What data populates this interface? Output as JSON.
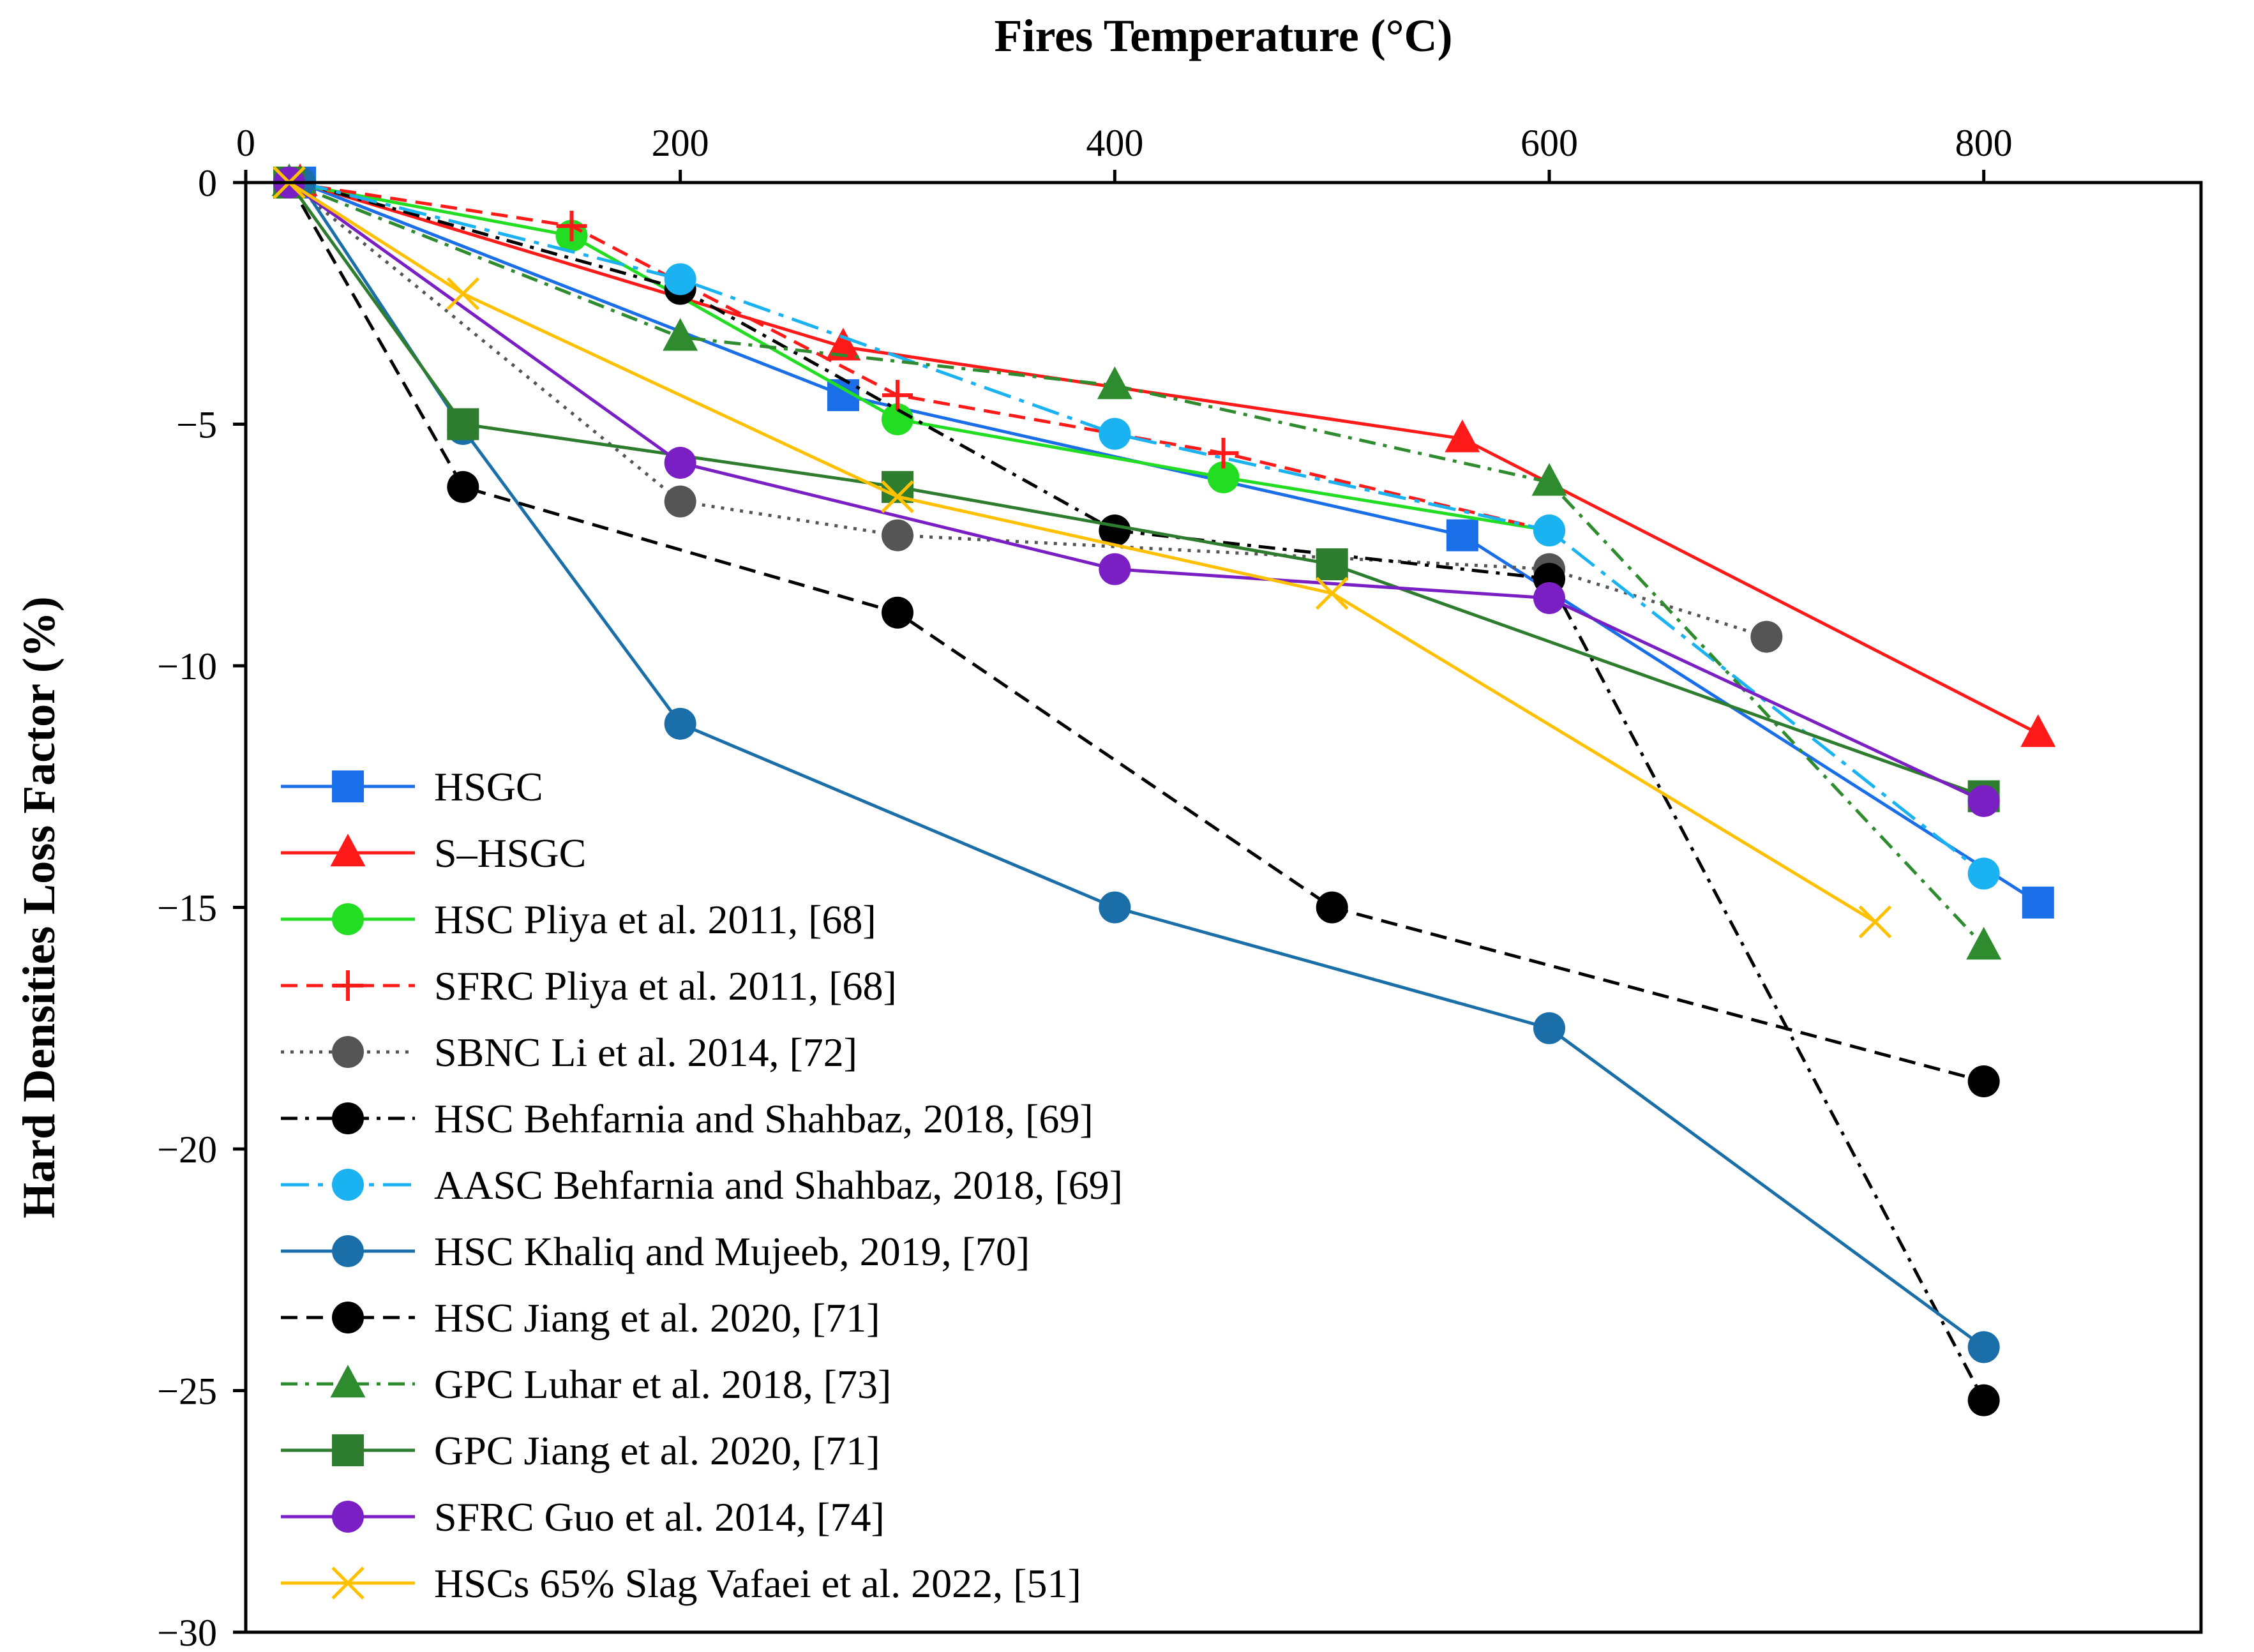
{
  "chart_data": {
    "type": "line",
    "title": "",
    "xlabel": "Fires Temperature (°C)",
    "ylabel": "Hard Densities Loss Factor (%)",
    "xlim": [
      0,
      900
    ],
    "ylim": [
      -30,
      0
    ],
    "x_ticks": [
      0,
      200,
      400,
      600,
      800
    ],
    "x_tick_labels": [
      "0",
      "200",
      "400",
      "600",
      "800"
    ],
    "y_ticks": [
      0,
      -5,
      -10,
      -15,
      -20,
      -25,
      -30
    ],
    "y_tick_labels": [
      "0",
      "−5",
      "−10",
      "−15",
      "−20",
      "−25",
      "−30"
    ],
    "x_axis_position": "top",
    "legend_position": "bottom-left",
    "series": [
      {
        "name": "HSGC",
        "color": "#1a6fe8",
        "dash": "solid",
        "marker": "square",
        "x": [
          25,
          275,
          560,
          825
        ],
        "y": [
          0,
          -4.4,
          -7.3,
          -14.9
        ]
      },
      {
        "name": "S–HSGC",
        "color": "#ff1a1a",
        "dash": "solid",
        "marker": "triangle",
        "x": [
          25,
          275,
          560,
          825
        ],
        "y": [
          0,
          -3.4,
          -5.3,
          -11.4
        ]
      },
      {
        "name": "HSC Pliya et al. 2011, [68]",
        "color": "#22dd22",
        "dash": "solid",
        "marker": "circle",
        "x": [
          20,
          150,
          300,
          450,
          600
        ],
        "y": [
          0,
          -1.1,
          -4.9,
          -6.1,
          -7.2
        ]
      },
      {
        "name": "SFRC Pliya et al. 2011, [68]",
        "color": "#ff1a1a",
        "dash": "dash",
        "marker": "plus",
        "x": [
          20,
          150,
          300,
          450,
          600
        ],
        "y": [
          0,
          -0.9,
          -4.4,
          -5.6,
          -7.2
        ]
      },
      {
        "name": "SBNC Li et al. 2014, [72]",
        "color": "#555555",
        "dash": "dot",
        "marker": "circle",
        "x": [
          20,
          200,
          300,
          600,
          700
        ],
        "y": [
          0,
          -6.6,
          -7.3,
          -8.0,
          -9.4
        ]
      },
      {
        "name": "HSC Behfarnia and Shahbaz, 2018, [69]",
        "color": "#000000",
        "dash": "dashdot",
        "marker": "circle",
        "x": [
          25,
          200,
          400,
          600,
          800
        ],
        "y": [
          0,
          -2.2,
          -7.2,
          -8.2,
          -25.2
        ]
      },
      {
        "name": "AASC Behfarnia and Shahbaz, 2018, [69]",
        "color": "#1ab2f0",
        "dash": "longdashdot",
        "marker": "circle",
        "x": [
          25,
          200,
          400,
          600,
          800
        ],
        "y": [
          0,
          -2.0,
          -5.2,
          -7.2,
          -14.3
        ]
      },
      {
        "name": "HSC Khaliq and Mujeeb, 2019, [70]",
        "color": "#1b6fa8",
        "dash": "solid",
        "marker": "circle",
        "x": [
          25,
          100,
          200,
          400,
          600,
          800
        ],
        "y": [
          0,
          -5.1,
          -11.2,
          -15.0,
          -17.5,
          -24.1
        ]
      },
      {
        "name": "HSC Jiang et al. 2020, [71]",
        "color": "#000000",
        "dash": "dash",
        "marker": "circle",
        "x": [
          20,
          100,
          300,
          500,
          800
        ],
        "y": [
          0,
          -6.3,
          -8.9,
          -15.0,
          -18.6
        ]
      },
      {
        "name": "GPC Luhar et al. 2018, [73]",
        "color": "#2e8b2e",
        "dash": "dashdot",
        "marker": "triangle",
        "x": [
          20,
          200,
          400,
          600,
          800
        ],
        "y": [
          0,
          -3.2,
          -4.2,
          -6.2,
          -15.8
        ]
      },
      {
        "name": "GPC Jiang et al. 2020, [71]",
        "color": "#2e7d2e",
        "dash": "solid",
        "marker": "square",
        "x": [
          20,
          100,
          300,
          500,
          800
        ],
        "y": [
          0,
          -5.0,
          -6.3,
          -7.9,
          -12.7
        ]
      },
      {
        "name": "SFRC Guo et al. 2014, [74]",
        "color": "#7a1fc4",
        "dash": "solid",
        "marker": "circle",
        "x": [
          20,
          200,
          400,
          600,
          800
        ],
        "y": [
          0,
          -5.8,
          -8.0,
          -8.6,
          -12.8
        ]
      },
      {
        "name": "HSCs 65% Slag Vafaei et al. 2022, [51]",
        "color": "#ffc000",
        "dash": "solid",
        "marker": "x",
        "x": [
          20,
          100,
          300,
          500,
          750
        ],
        "y": [
          0,
          -2.3,
          -6.5,
          -8.5,
          -15.3
        ]
      }
    ]
  }
}
